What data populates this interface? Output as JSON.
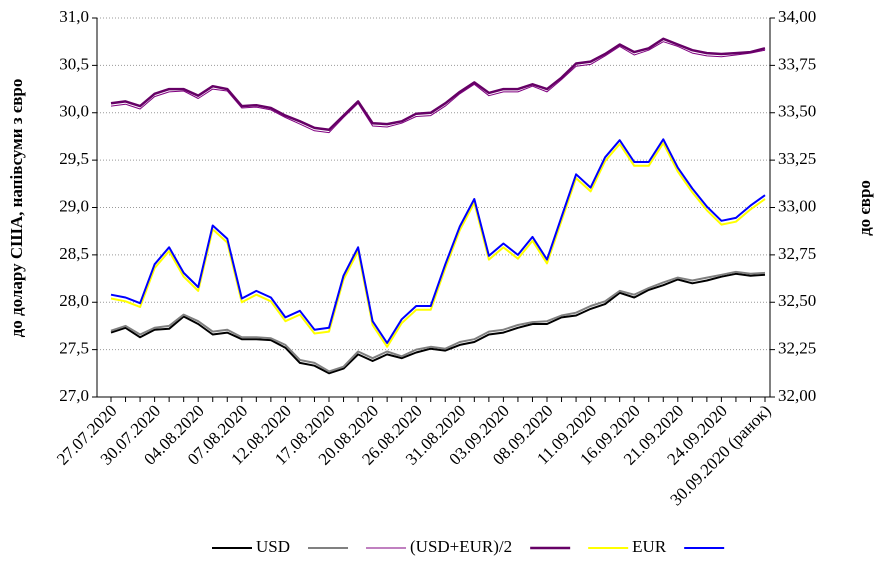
{
  "chart_data": {
    "type": "line",
    "categories": [
      "27.07.2020",
      null,
      null,
      "30.07.2020",
      null,
      null,
      "04.08.2020",
      null,
      null,
      "07.08.2020",
      null,
      null,
      "12.08.2020",
      null,
      null,
      "17.08.2020",
      null,
      null,
      "20.08.2020",
      null,
      null,
      "26.08.2020",
      null,
      null,
      "31.08.2020",
      null,
      null,
      "03.09.2020",
      null,
      null,
      "08.09.2020",
      null,
      null,
      "11.09.2020",
      null,
      null,
      "16.09.2020",
      null,
      null,
      "21.09.2020",
      null,
      null,
      "24.09.2020",
      null,
      null,
      "30.09.2020 (ранок)"
    ],
    "ylabel": "до долару США, напівсуми з євро",
    "y2label": "до євро",
    "ylim": [
      27,
      31
    ],
    "yticks": [
      {
        "value": 27,
        "label": "27,0"
      },
      {
        "value": 27.5,
        "label": "27,5"
      },
      {
        "value": 28,
        "label": "28,0"
      },
      {
        "value": 28.5,
        "label": "28,5"
      },
      {
        "value": 29,
        "label": "29,0"
      },
      {
        "value": 29.5,
        "label": "29,5"
      },
      {
        "value": 30,
        "label": "30,0"
      },
      {
        "value": 30.5,
        "label": "30,5"
      },
      {
        "value": 31,
        "label": "31,0"
      }
    ],
    "y2lim": [
      32,
      34
    ],
    "y2ticks": [
      {
        "value": 32,
        "label": "32,00"
      },
      {
        "value": 32.25,
        "label": "32,25"
      },
      {
        "value": 32.5,
        "label": "32,50"
      },
      {
        "value": 32.75,
        "label": "32,75"
      },
      {
        "value": 33,
        "label": "33,00"
      },
      {
        "value": 33.25,
        "label": "33,25"
      },
      {
        "value": 33.5,
        "label": "33,50"
      },
      {
        "value": 33.75,
        "label": "33,75"
      },
      {
        "value": 34,
        "label": "34,00"
      }
    ],
    "grid": true,
    "legend": "bottom",
    "series": [
      {
        "name": "USD",
        "color": "#000000",
        "width": 2,
        "values": [
          27.68,
          27.73,
          27.63,
          27.71,
          27.72,
          27.85,
          27.77,
          27.66,
          27.68,
          27.61,
          27.61,
          27.6,
          27.52,
          27.36,
          27.33,
          27.25,
          27.3,
          27.45,
          27.38,
          27.45,
          27.41,
          27.47,
          27.51,
          27.49,
          27.55,
          27.58,
          27.66,
          27.68,
          27.73,
          27.77,
          27.77,
          27.84,
          27.86,
          27.93,
          27.98,
          28.1,
          28.05,
          28.13,
          28.18,
          28.24,
          28.2,
          28.23,
          28.27,
          28.3,
          28.28,
          28.29
        ]
      },
      {
        "color": "#808080",
        "width": 2,
        "values": [
          27.7,
          27.75,
          27.66,
          27.73,
          27.75,
          27.87,
          27.8,
          27.69,
          27.71,
          27.63,
          27.63,
          27.62,
          27.55,
          27.39,
          27.36,
          27.27,
          27.32,
          27.48,
          27.41,
          27.48,
          27.43,
          27.5,
          27.53,
          27.51,
          27.58,
          27.61,
          27.69,
          27.71,
          27.76,
          27.79,
          27.8,
          27.86,
          27.89,
          27.96,
          28.01,
          28.12,
          28.08,
          28.15,
          28.21,
          28.26,
          28.23,
          28.26,
          28.29,
          28.32,
          28.3,
          28.31
        ]
      },
      {
        "name": "(USD+EUR)/2",
        "color": "#800080",
        "width": 1,
        "values": [
          30.07,
          30.09,
          30.04,
          30.17,
          30.22,
          30.23,
          30.15,
          30.25,
          30.23,
          30.05,
          30.06,
          30.03,
          29.95,
          29.88,
          29.81,
          29.79,
          29.95,
          30.1,
          29.86,
          29.85,
          29.89,
          29.96,
          29.97,
          30.07,
          30.2,
          30.3,
          30.18,
          30.22,
          30.22,
          30.28,
          30.22,
          30.35,
          30.49,
          30.51,
          30.6,
          30.7,
          30.61,
          30.66,
          30.75,
          30.7,
          30.63,
          30.6,
          30.59,
          30.61,
          30.63,
          30.66
        ]
      },
      {
        "color": "#660066",
        "width": 2.5,
        "values": [
          30.1,
          30.12,
          30.07,
          30.2,
          30.25,
          30.25,
          30.18,
          30.28,
          30.25,
          30.07,
          30.08,
          30.05,
          29.97,
          29.91,
          29.84,
          29.82,
          29.97,
          30.12,
          29.89,
          29.88,
          29.91,
          29.99,
          30.0,
          30.1,
          30.22,
          30.32,
          30.21,
          30.25,
          30.25,
          30.3,
          30.25,
          30.37,
          30.52,
          30.54,
          30.62,
          30.72,
          30.64,
          30.68,
          30.78,
          30.72,
          30.66,
          30.63,
          30.62,
          30.63,
          30.64,
          30.68
        ]
      },
      {
        "name": "EUR",
        "color": "#ffff00",
        "width": 2,
        "axis": "y2",
        "values": [
          32.52,
          32.505,
          32.475,
          32.68,
          32.77,
          32.635,
          32.56,
          32.885,
          32.815,
          32.5,
          32.54,
          32.505,
          32.4,
          32.435,
          32.335,
          32.345,
          32.62,
          32.77,
          32.38,
          32.265,
          32.39,
          32.46,
          32.46,
          32.68,
          32.88,
          33.025,
          32.725,
          32.79,
          32.73,
          32.825,
          32.705,
          32.93,
          33.155,
          33.085,
          33.245,
          33.335,
          33.22,
          33.22,
          33.34,
          33.19,
          33.08,
          32.985,
          32.91,
          32.925,
          32.99,
          33.045
        ]
      },
      {
        "color": "#0000ff",
        "width": 2,
        "axis": "y2",
        "values": [
          32.54,
          32.525,
          32.495,
          32.7,
          32.79,
          32.655,
          32.58,
          32.905,
          32.835,
          32.52,
          32.56,
          32.525,
          32.42,
          32.455,
          32.355,
          32.365,
          32.64,
          32.79,
          32.4,
          32.285,
          32.41,
          32.48,
          32.48,
          32.7,
          32.9,
          33.045,
          32.745,
          32.81,
          32.75,
          32.845,
          32.725,
          32.95,
          33.175,
          33.105,
          33.265,
          33.355,
          33.24,
          33.24,
          33.36,
          33.21,
          33.1,
          33.005,
          32.93,
          32.945,
          33.01,
          33.065
        ]
      }
    ]
  }
}
